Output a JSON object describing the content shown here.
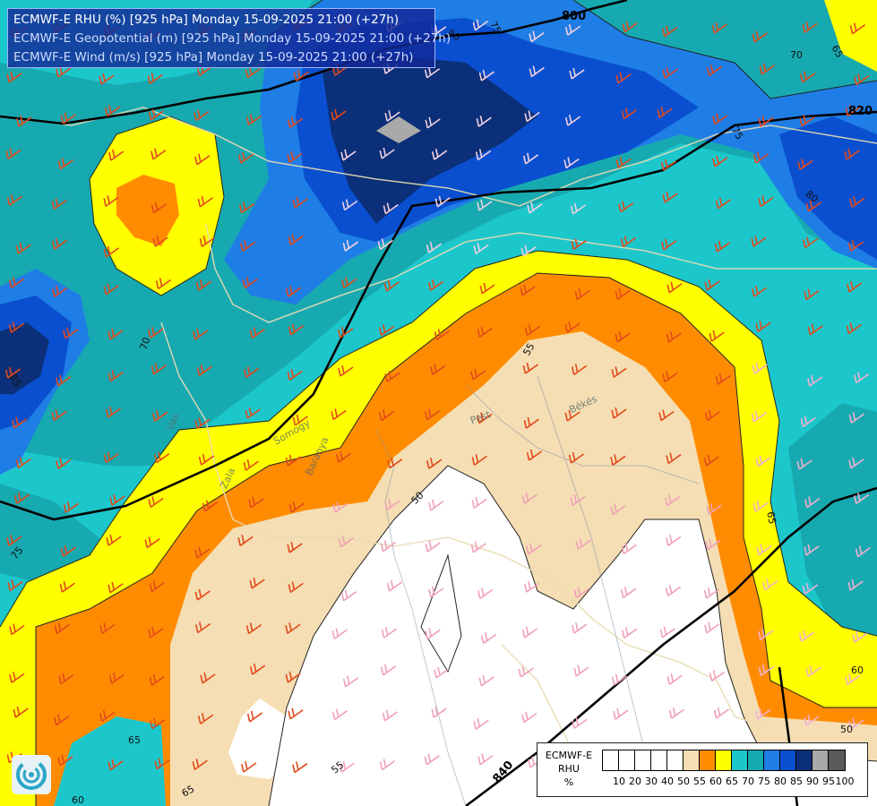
{
  "header": {
    "line1": "ECMWF-E RHU (%) [925 hPa] Monday 15-09-2025 21:00 (+27h)",
    "line2": "ECMWF-E Geopotential (m) [925 hPa] Monday 15-09-2025 21:00 (+27h)",
    "line3": "ECMWF-E Wind (m/s) [925 hPa] Monday 15-09-2025 21:00 (+27h)"
  },
  "legend": {
    "title_line1": "ECMWF-E",
    "title_line2": "RHU",
    "title_line3": "%",
    "ticks": [
      "10",
      "20",
      "30",
      "40",
      "50",
      "55",
      "60",
      "65",
      "70",
      "75",
      "80",
      "85",
      "90",
      "95",
      "100"
    ],
    "swatch_colors": [
      "#ffffff",
      "#ffffff",
      "#ffffff",
      "#ffffff",
      "#ffffff",
      "#f5deb3",
      "#ff8c00",
      "#ffff00",
      "#1cc7cc",
      "#17a9b0",
      "#1f7de6",
      "#0a4fcf",
      "#0b2f78",
      "#a9a9a9",
      "#5a5a5a"
    ]
  },
  "geopotential_labels": [
    "800",
    "820",
    "840"
  ],
  "rhu_contour_labels": [
    "50",
    "55",
    "60",
    "65",
    "70",
    "75",
    "80",
    "85"
  ],
  "place_labels": [
    "Békés",
    "Pest",
    "Somogy",
    "Baranya",
    "Zala",
    "Vas"
  ],
  "colors": {
    "rhu_50": "#ffffff",
    "rhu_55": "#f5deb3",
    "rhu_60": "#ff8c00",
    "rhu_65": "#ffff00",
    "rhu_70": "#1cc7cc",
    "rhu_75": "#17a9b0",
    "rhu_80": "#1f7de6",
    "rhu_85": "#0a4fcf",
    "rhu_90": "#0b2f78",
    "rhu_95": "#a9a9a9",
    "wind_barb": "#e24a1c"
  },
  "logo_icon": "ecmwf-logo-icon"
}
